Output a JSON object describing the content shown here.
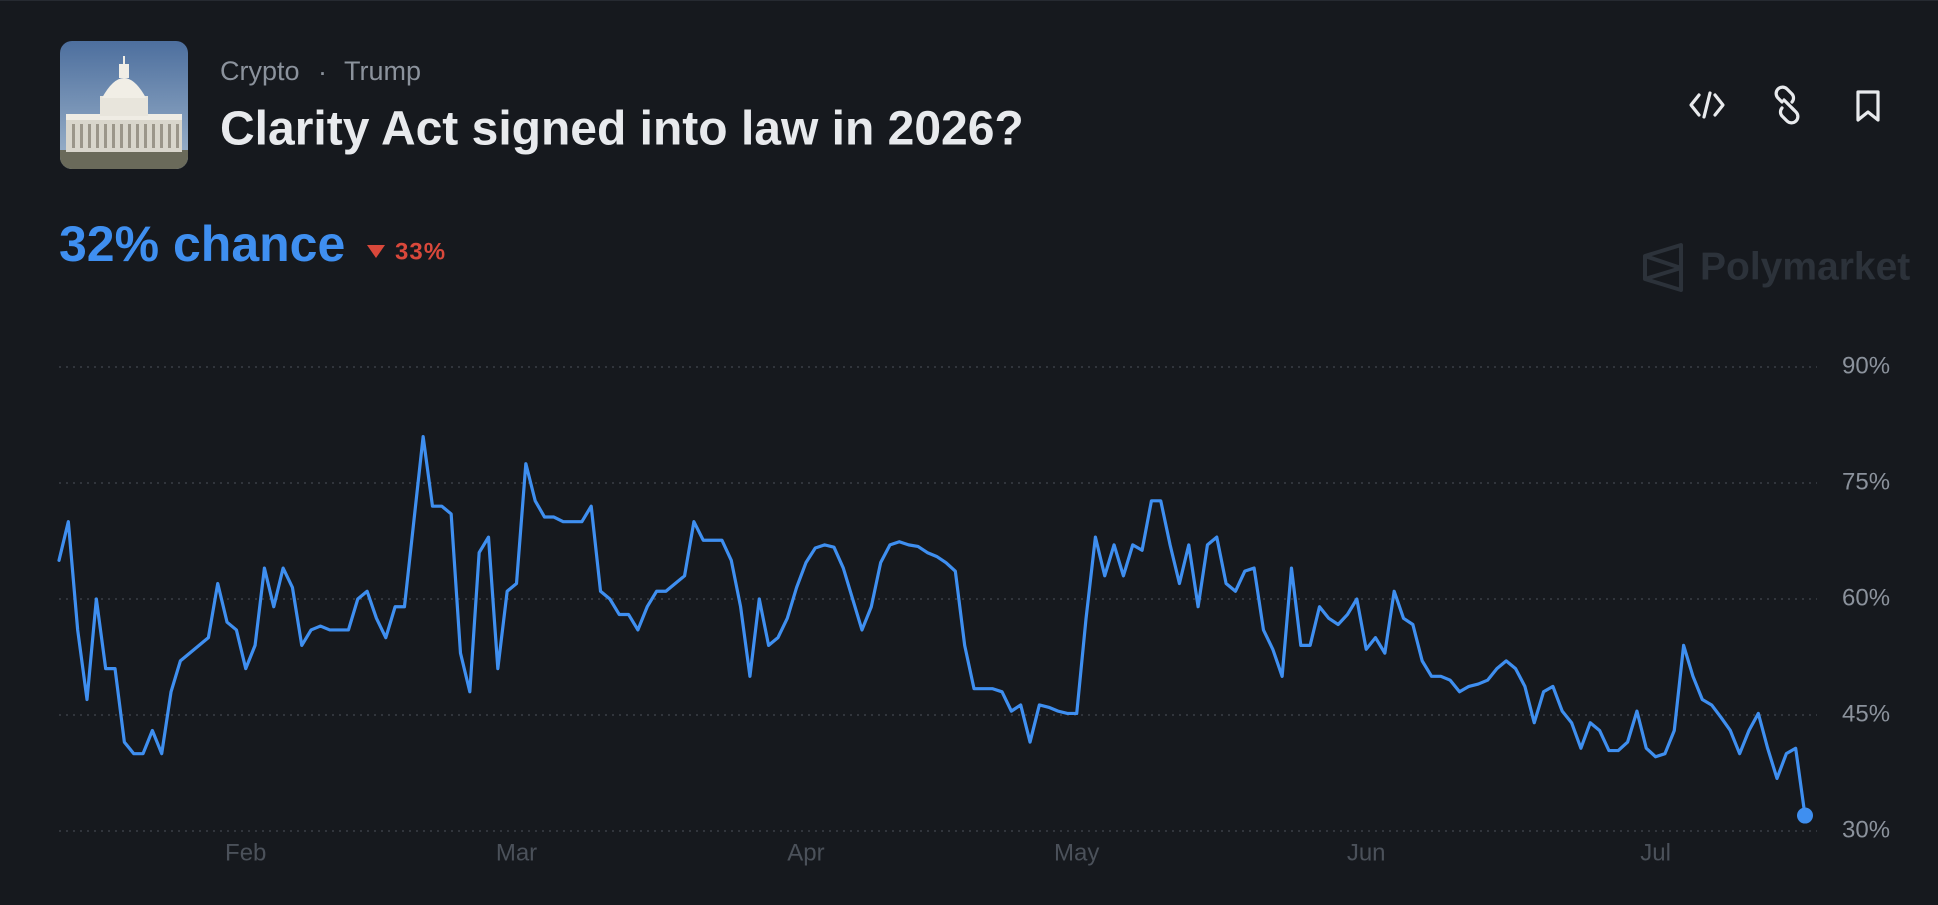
{
  "header": {
    "category": "Crypto",
    "tag": "Trump",
    "title": "Clarity Act signed into law in 2026?"
  },
  "market": {
    "chance": "32% chance",
    "change": "33%"
  },
  "brand": "Polymarket",
  "chart_data": {
    "type": "line",
    "categories": [
      null,
      null,
      null,
      null,
      null,
      null,
      null,
      null,
      null,
      null,
      null,
      null,
      null,
      null,
      null,
      null,
      null,
      null,
      null,
      null,
      "Feb",
      null,
      null,
      null,
      null,
      null,
      null,
      null,
      null,
      null,
      null,
      null,
      null,
      null,
      null,
      null,
      null,
      null,
      null,
      null,
      null,
      null,
      null,
      null,
      null,
      null,
      null,
      null,
      null,
      "Mar",
      null,
      null,
      null,
      null,
      null,
      null,
      null,
      null,
      null,
      null,
      null,
      null,
      null,
      null,
      null,
      null,
      null,
      null,
      null,
      null,
      null,
      null,
      null,
      null,
      null,
      null,
      null,
      null,
      null,
      null,
      "Apr",
      null,
      null,
      null,
      null,
      null,
      null,
      null,
      null,
      null,
      null,
      null,
      null,
      null,
      null,
      null,
      null,
      null,
      null,
      null,
      null,
      null,
      null,
      null,
      null,
      null,
      null,
      null,
      null,
      "May",
      null,
      null,
      null,
      null,
      null,
      null,
      null,
      null,
      null,
      null,
      null,
      null,
      null,
      null,
      null,
      null,
      null,
      null,
      null,
      null,
      null,
      null,
      null,
      null,
      null,
      null,
      null,
      null,
      null,
      null,
      "Jun",
      null,
      null,
      null,
      null,
      null,
      null,
      null,
      null,
      null,
      null,
      null,
      null,
      null,
      null,
      null,
      null,
      null,
      null,
      null,
      null,
      null,
      null,
      null,
      null,
      null,
      null,
      null,
      null,
      null,
      null,
      "Jul",
      null,
      null,
      null,
      null,
      null,
      null,
      null,
      null,
      null,
      null,
      null,
      null,
      null,
      null,
      null,
      null
    ],
    "series": [
      {
        "color": "#3f8ff0",
        "values": [
          65,
          70,
          56,
          47,
          60,
          51,
          51,
          41.5,
          40,
          40,
          43,
          40,
          48,
          52,
          53,
          54,
          55,
          62,
          57,
          56,
          51,
          54,
          64,
          59,
          64,
          61.5,
          54,
          56,
          56.5,
          56,
          56,
          56,
          60,
          61,
          57.5,
          55,
          59,
          59,
          70,
          81,
          72,
          72,
          71,
          53,
          48,
          66,
          68,
          51,
          61,
          62,
          77.5,
          72.7,
          70.6,
          70.6,
          70,
          70,
          70,
          72,
          61,
          60,
          58,
          58,
          56,
          59,
          61,
          61,
          62,
          63,
          70,
          67.6,
          67.6,
          67.6,
          65,
          59,
          50,
          60,
          54,
          55,
          57.5,
          61.5,
          64.7,
          66.6,
          67,
          66.7,
          64,
          60,
          56,
          59,
          64.7,
          67,
          67.4,
          67,
          66.8,
          66,
          65.5,
          64.7,
          63.6,
          54,
          48.4,
          48.4,
          48.4,
          48,
          45.5,
          46.3,
          41.5,
          46.3,
          46,
          45.5,
          45.2,
          45.2,
          57.5,
          68,
          63,
          67,
          63,
          67,
          66.3,
          72.7,
          72.7,
          67,
          62,
          67,
          59,
          67,
          68,
          62,
          61,
          63.6,
          64,
          56,
          53.5,
          50,
          64,
          54,
          54,
          59,
          57.5,
          56.7,
          58,
          60,
          53.5,
          55,
          53,
          61,
          57.5,
          56.7,
          52,
          50,
          50,
          49.5,
          48,
          48.7,
          49,
          49.5,
          51,
          52,
          51,
          48.7,
          44,
          48,
          48.7,
          45.5,
          44,
          40.7,
          44,
          43,
          40.4,
          40.4,
          41.5,
          45.5,
          40.7,
          39.6,
          40,
          43,
          54,
          50,
          47,
          46.3,
          44.7,
          43,
          40,
          43,
          45.2,
          40.7,
          36.8,
          40,
          40.7,
          32
        ]
      }
    ],
    "ylim": [
      30,
      90
    ],
    "yticks": [
      {
        "value": 30,
        "label": "30%"
      },
      {
        "value": 45,
        "label": "45%"
      },
      {
        "value": 60,
        "label": "60%"
      },
      {
        "value": 75,
        "label": "75%"
      },
      {
        "value": 90,
        "label": "90%"
      }
    ],
    "grid": true
  }
}
